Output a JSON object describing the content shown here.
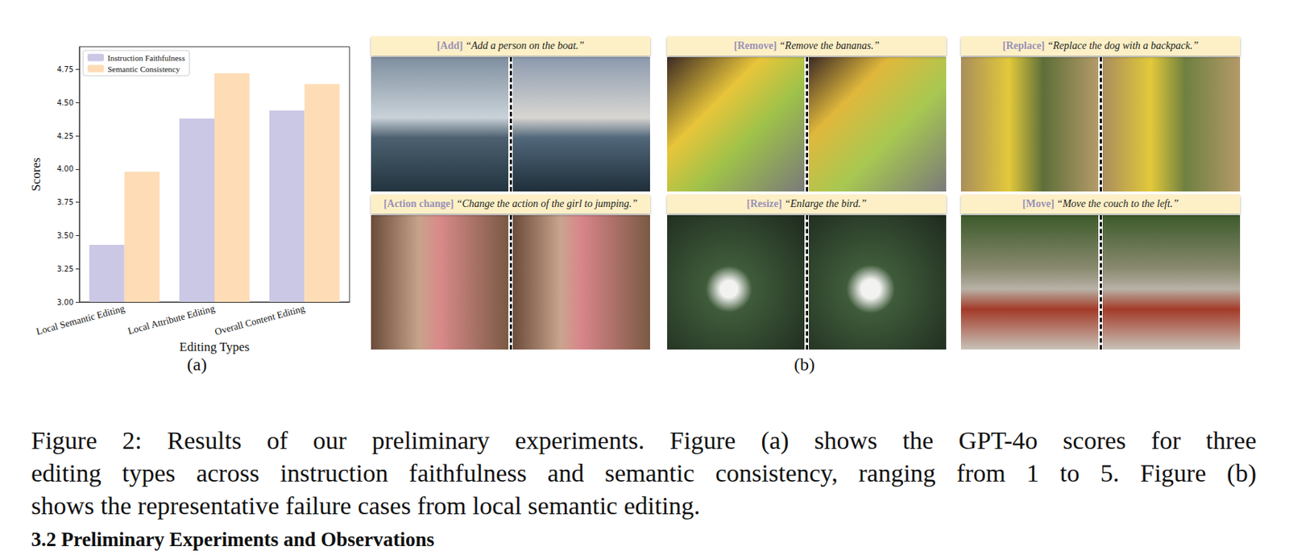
{
  "chart_data": {
    "type": "bar",
    "categories": [
      "Local Semantic Editing",
      "Local Attribute Editing",
      "Overall Content Editing"
    ],
    "series": [
      {
        "name": "Instruction Faithfulness",
        "color": "#cbc8e5",
        "values": [
          3.43,
          4.38,
          4.44
        ]
      },
      {
        "name": "Semantic Consistency",
        "color": "#fddcb6",
        "values": [
          3.98,
          4.72,
          4.64
        ]
      }
    ],
    "xlabel": "Editing Types",
    "ylabel": "Scores",
    "ylim": [
      3.0,
      4.92
    ],
    "yticks": [
      {
        "value": 3.0,
        "label": "3.00"
      },
      {
        "value": 3.25,
        "label": "3.25"
      },
      {
        "value": 3.5,
        "label": "3.50"
      },
      {
        "value": 3.75,
        "label": "3.75"
      },
      {
        "value": 4.0,
        "label": "4.00"
      },
      {
        "value": 4.25,
        "label": "4.25"
      },
      {
        "value": 4.5,
        "label": "4.50"
      },
      {
        "value": 4.75,
        "label": "4.75"
      }
    ],
    "legend": "upper left",
    "grid": false
  },
  "figure": {
    "panel_labels": [
      "(a)",
      "(b)"
    ],
    "cases": [
      {
        "tag": "[Add]",
        "instruction": "“Add a person on the boat.”"
      },
      {
        "tag": "[Remove]",
        "instruction": "“Remove the bananas.”"
      },
      {
        "tag": "[Replace]",
        "instruction": "“Replace the dog with a backpack.”"
      },
      {
        "tag": "[Action change]",
        "instruction": "“Change the action of the girl to jumping.”"
      },
      {
        "tag": "[Resize]",
        "instruction": "“Enlarge the bird.”"
      },
      {
        "tag": "[Move]",
        "instruction": "“Move the couch to the left.”"
      }
    ],
    "caption_lines": [
      "Figure 2: Results of our preliminary experiments. Figure (a) shows the GPT-4o scores for three",
      "editing types across instruction faithfulness and semantic consistency, ranging from 1 to 5. Figure (b)",
      "shows the representative failure cases from local semantic editing."
    ],
    "section_heading": "3.2 Preliminary Experiments and Observations"
  }
}
